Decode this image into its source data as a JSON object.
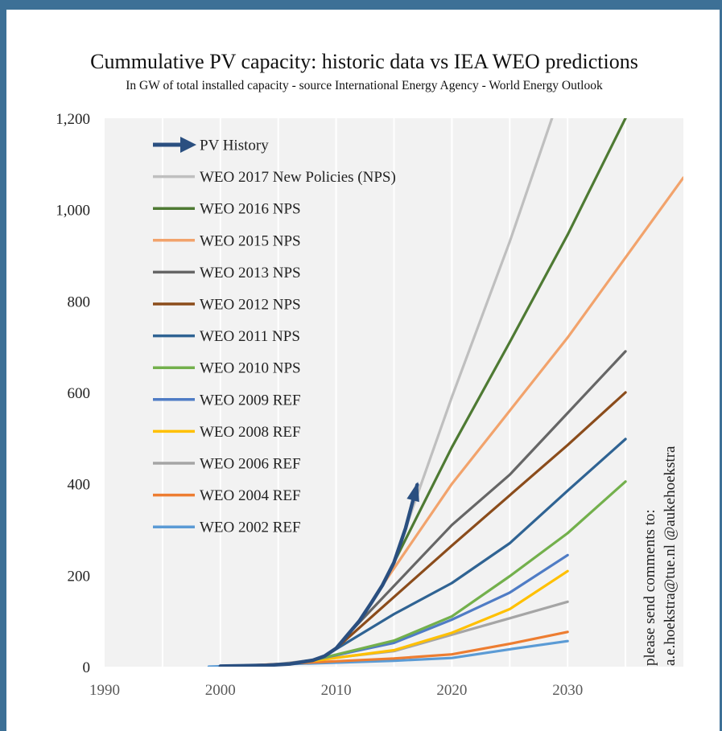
{
  "chart_data": {
    "type": "line",
    "title": "Cummulative PV capacity: historic data vs IEA WEO predictions",
    "subtitle": "In GW of total installed capacity - source International Energy Agency - World Energy Outlook",
    "xlim": [
      1990,
      2040
    ],
    "ylim": [
      0,
      1200
    ],
    "x_ticks": [
      "1990",
      "2000",
      "2010",
      "2020",
      "2030"
    ],
    "y_ticks": [
      "0",
      "200",
      "400",
      "600",
      "800",
      "1,000",
      "1,200"
    ],
    "grid": true,
    "legend_position": "top-left",
    "annotation": [
      "please send comments to:",
      "a.e.hoekstra@tue.nl @aukehoekstra"
    ],
    "series": [
      {
        "name": "PV History",
        "color": "#2a4f80",
        "arrow": true,
        "points": [
          [
            2000,
            1
          ],
          [
            2002,
            2
          ],
          [
            2004,
            3
          ],
          [
            2006,
            6
          ],
          [
            2008,
            14
          ],
          [
            2009,
            23
          ],
          [
            2010,
            40
          ],
          [
            2011,
            70
          ],
          [
            2012,
            100
          ],
          [
            2013,
            138
          ],
          [
            2014,
            178
          ],
          [
            2015,
            228
          ],
          [
            2016,
            303
          ],
          [
            2017,
            398
          ]
        ]
      },
      {
        "name": "WEO 2017 New Policies (NPS)",
        "color": "#bfbfbf",
        "points": [
          [
            2016,
            303
          ],
          [
            2020,
            590
          ],
          [
            2025,
            930
          ],
          [
            2030,
            1300
          ]
        ]
      },
      {
        "name": "WEO 2016 NPS",
        "color": "#4e7a33",
        "points": [
          [
            2015,
            228
          ],
          [
            2020,
            480
          ],
          [
            2025,
            710
          ],
          [
            2030,
            945
          ],
          [
            2035,
            1200
          ]
        ]
      },
      {
        "name": "WEO 2015 NPS",
        "color": "#f2a36c",
        "points": [
          [
            2014,
            178
          ],
          [
            2020,
            400
          ],
          [
            2025,
            560
          ],
          [
            2030,
            720
          ],
          [
            2035,
            895
          ],
          [
            2040,
            1070
          ]
        ]
      },
      {
        "name": "WEO 2013 NPS",
        "color": "#666666",
        "points": [
          [
            2011,
            70
          ],
          [
            2020,
            310
          ],
          [
            2025,
            420
          ],
          [
            2030,
            555
          ],
          [
            2035,
            690
          ]
        ]
      },
      {
        "name": "WEO 2012 NPS",
        "color": "#8b4c1b",
        "points": [
          [
            2010,
            40
          ],
          [
            2020,
            265
          ],
          [
            2025,
            375
          ],
          [
            2030,
            485
          ],
          [
            2035,
            600
          ]
        ]
      },
      {
        "name": "WEO 2011 NPS",
        "color": "#2f6393",
        "points": [
          [
            2009,
            23
          ],
          [
            2015,
            115
          ],
          [
            2020,
            183
          ],
          [
            2025,
            270
          ],
          [
            2030,
            385
          ],
          [
            2035,
            498
          ]
        ]
      },
      {
        "name": "WEO 2010 NPS",
        "color": "#73b04c",
        "points": [
          [
            2008,
            14
          ],
          [
            2015,
            57
          ],
          [
            2020,
            110
          ],
          [
            2025,
            198
          ],
          [
            2030,
            292
          ],
          [
            2035,
            405
          ]
        ]
      },
      {
        "name": "WEO 2009 REF",
        "color": "#4f7cc5",
        "points": [
          [
            2007,
            9
          ],
          [
            2015,
            52
          ],
          [
            2020,
            103
          ],
          [
            2025,
            162
          ],
          [
            2030,
            244
          ]
        ]
      },
      {
        "name": "WEO 2008 REF",
        "color": "#ffc000",
        "points": [
          [
            2006,
            6
          ],
          [
            2015,
            36
          ],
          [
            2020,
            74
          ],
          [
            2025,
            126
          ],
          [
            2030,
            209
          ]
        ]
      },
      {
        "name": "WEO 2006 REF",
        "color": "#a5a5a5",
        "points": [
          [
            2004,
            3
          ],
          [
            2015,
            34
          ],
          [
            2020,
            70
          ],
          [
            2025,
            106
          ],
          [
            2030,
            142
          ]
        ]
      },
      {
        "name": "WEO 2004 REF",
        "color": "#ed7d31",
        "points": [
          [
            2002,
            2
          ],
          [
            2015,
            18
          ],
          [
            2020,
            27
          ],
          [
            2025,
            50
          ],
          [
            2030,
            76
          ]
        ]
      },
      {
        "name": "WEO 2002 REF",
        "color": "#5b9bd5",
        "points": [
          [
            1999,
            0
          ],
          [
            2015,
            13
          ],
          [
            2020,
            19
          ],
          [
            2025,
            38
          ],
          [
            2030,
            56
          ]
        ]
      }
    ]
  }
}
